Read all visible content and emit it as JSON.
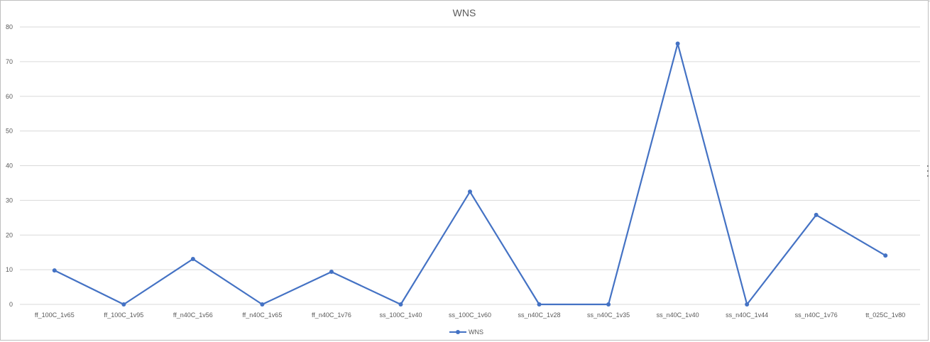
{
  "chart_data": {
    "type": "line",
    "title": "WNS",
    "xlabel": "",
    "ylabel": "",
    "categories": [
      "ff_100C_1v65",
      "ff_100C_1v95",
      "ff_n40C_1v56",
      "ff_n40C_1v65",
      "ff_n40C_1v76",
      "ss_100C_1v40",
      "ss_100C_1v60",
      "ss_n40C_1v28",
      "ss_n40C_1v35",
      "ss_n40C_1v40",
      "ss_n40C_1v44",
      "ss_n40C_1v76",
      "tt_025C_1v80"
    ],
    "series": [
      {
        "name": "WNS",
        "values": [
          9.8,
          0,
          13.1,
          0,
          9.4,
          0,
          32.5,
          0,
          0,
          75.2,
          0,
          25.8,
          14.1
        ],
        "color": "#4472c4"
      }
    ],
    "ylim": [
      0,
      80
    ],
    "yticks": [
      0,
      10,
      20,
      30,
      40,
      50,
      60,
      70,
      80
    ],
    "grid": true,
    "legend": "bottom"
  }
}
